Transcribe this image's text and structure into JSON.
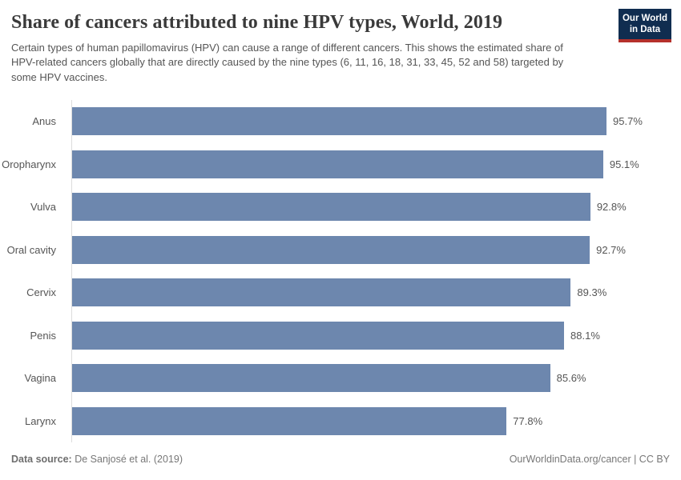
{
  "header": {
    "title": "Share of cancers attributed to nine HPV types, World, 2019",
    "subtitle": "Certain types of human papillomavirus (HPV) can cause a range of different cancers. This shows the estimated share of HPV-related cancers globally that are directly caused by the nine types (6, 11, 16, 18, 31, 33, 45, 52 and 58) targeted by some HPV vaccines.",
    "logo": {
      "line1": "Our World",
      "line2": "in Data"
    }
  },
  "chart_data": {
    "type": "bar",
    "orientation": "horizontal",
    "title": "Share of cancers attributed to nine HPV types, World, 2019",
    "categories": [
      "Anus",
      "Oropharynx",
      "Vulva",
      "Oral cavity",
      "Cervix",
      "Penis",
      "Vagina",
      "Larynx"
    ],
    "values": [
      95.7,
      95.1,
      92.8,
      92.7,
      89.3,
      88.1,
      85.6,
      77.8
    ],
    "value_labels": [
      "95.7%",
      "95.1%",
      "92.8%",
      "92.7%",
      "89.3%",
      "88.1%",
      "85.6%",
      "77.8%"
    ],
    "xlabel": "",
    "ylabel": "",
    "xlim": [
      0,
      100
    ],
    "unit": "%",
    "grid": false,
    "legend": false,
    "bar_color": "#6d87ae"
  },
  "footer": {
    "data_source_label": "Data source:",
    "data_source_value": " De Sanjosé et al. (2019)",
    "attribution": "OurWorldinData.org/cancer | CC BY"
  },
  "colors": {
    "bar": "#6d87ae",
    "axis": "#dddddd",
    "title_text": "#3a3a3a",
    "body_text": "#555555",
    "footer_text": "#777777",
    "logo_bg": "#102d50",
    "logo_stripe": "#b5312b"
  }
}
